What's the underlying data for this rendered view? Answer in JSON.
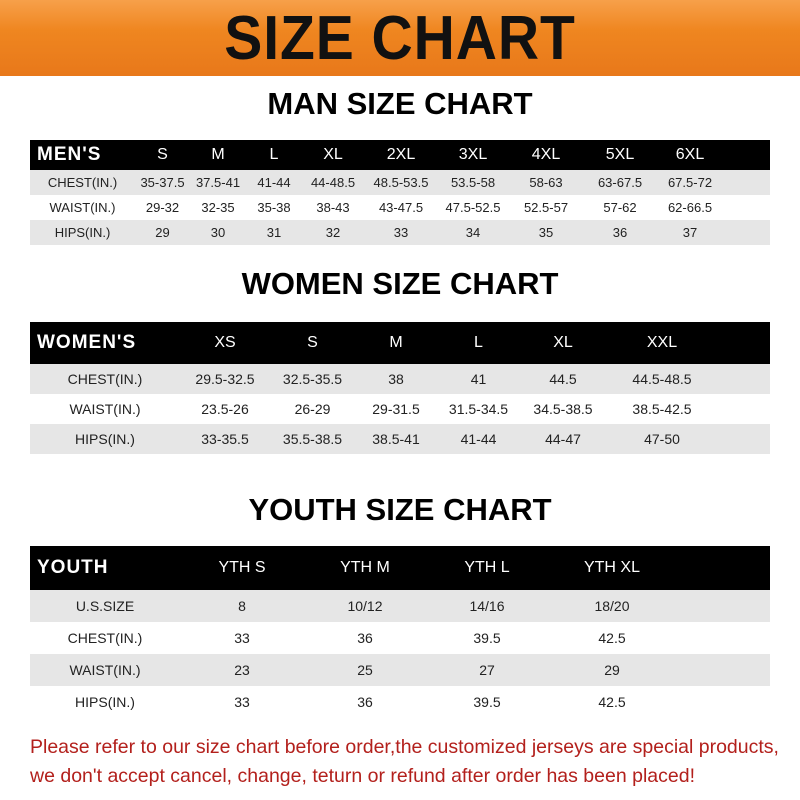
{
  "title": "SIZE CHART",
  "men": {
    "title": "MAN SIZE CHART",
    "header": [
      "MEN'S",
      "S",
      "M",
      "L",
      "XL",
      "2XL",
      "3XL",
      "4XL",
      "5XL",
      "6XL"
    ],
    "rows": [
      [
        "CHEST(IN.)",
        "35-37.5",
        "37.5-41",
        "41-44",
        "44-48.5",
        "48.5-53.5",
        "53.5-58",
        "58-63",
        "63-67.5",
        "67.5-72"
      ],
      [
        "WAIST(IN.)",
        "29-32",
        "32-35",
        "35-38",
        "38-43",
        "43-47.5",
        "47.5-52.5",
        "52.5-57",
        "57-62",
        "62-66.5"
      ],
      [
        "HIPS(IN.)",
        "29",
        "30",
        "31",
        "32",
        "33",
        "34",
        "35",
        "36",
        "37"
      ]
    ]
  },
  "women": {
    "title": "WOMEN SIZE CHART",
    "header": [
      "WOMEN'S",
      "XS",
      "S",
      "M",
      "L",
      "XL",
      "XXL"
    ],
    "rows": [
      [
        "CHEST(IN.)",
        "29.5-32.5",
        "32.5-35.5",
        "38",
        "41",
        "44.5",
        "44.5-48.5"
      ],
      [
        "WAIST(IN.)",
        "23.5-26",
        "26-29",
        "29-31.5",
        "31.5-34.5",
        "34.5-38.5",
        "38.5-42.5"
      ],
      [
        "HIPS(IN.)",
        "33-35.5",
        "35.5-38.5",
        "38.5-41",
        "41-44",
        "44-47",
        "47-50"
      ]
    ]
  },
  "youth": {
    "title": "YOUTH SIZE CHART",
    "header": [
      "YOUTH",
      "YTH S",
      "YTH M",
      "YTH L",
      "YTH XL"
    ],
    "rows": [
      [
        "U.S.SIZE",
        "8",
        "10/12",
        "14/16",
        "18/20"
      ],
      [
        "CHEST(IN.)",
        "33",
        "36",
        "39.5",
        "42.5"
      ],
      [
        "WAIST(IN.)",
        "23",
        "25",
        "27",
        "29"
      ],
      [
        "HIPS(IN.)",
        "33",
        "36",
        "39.5",
        "42.5"
      ]
    ]
  },
  "notice": [
    "Please refer to our size chart before order,the customized jerseys are special products,",
    "we don't accept cancel, change, teturn or refund after order has been placed!"
  ],
  "colors": {
    "banner": "#ef8620",
    "header": "#000000",
    "stripe": "#e6e6e6",
    "notice": "#b3201c"
  }
}
